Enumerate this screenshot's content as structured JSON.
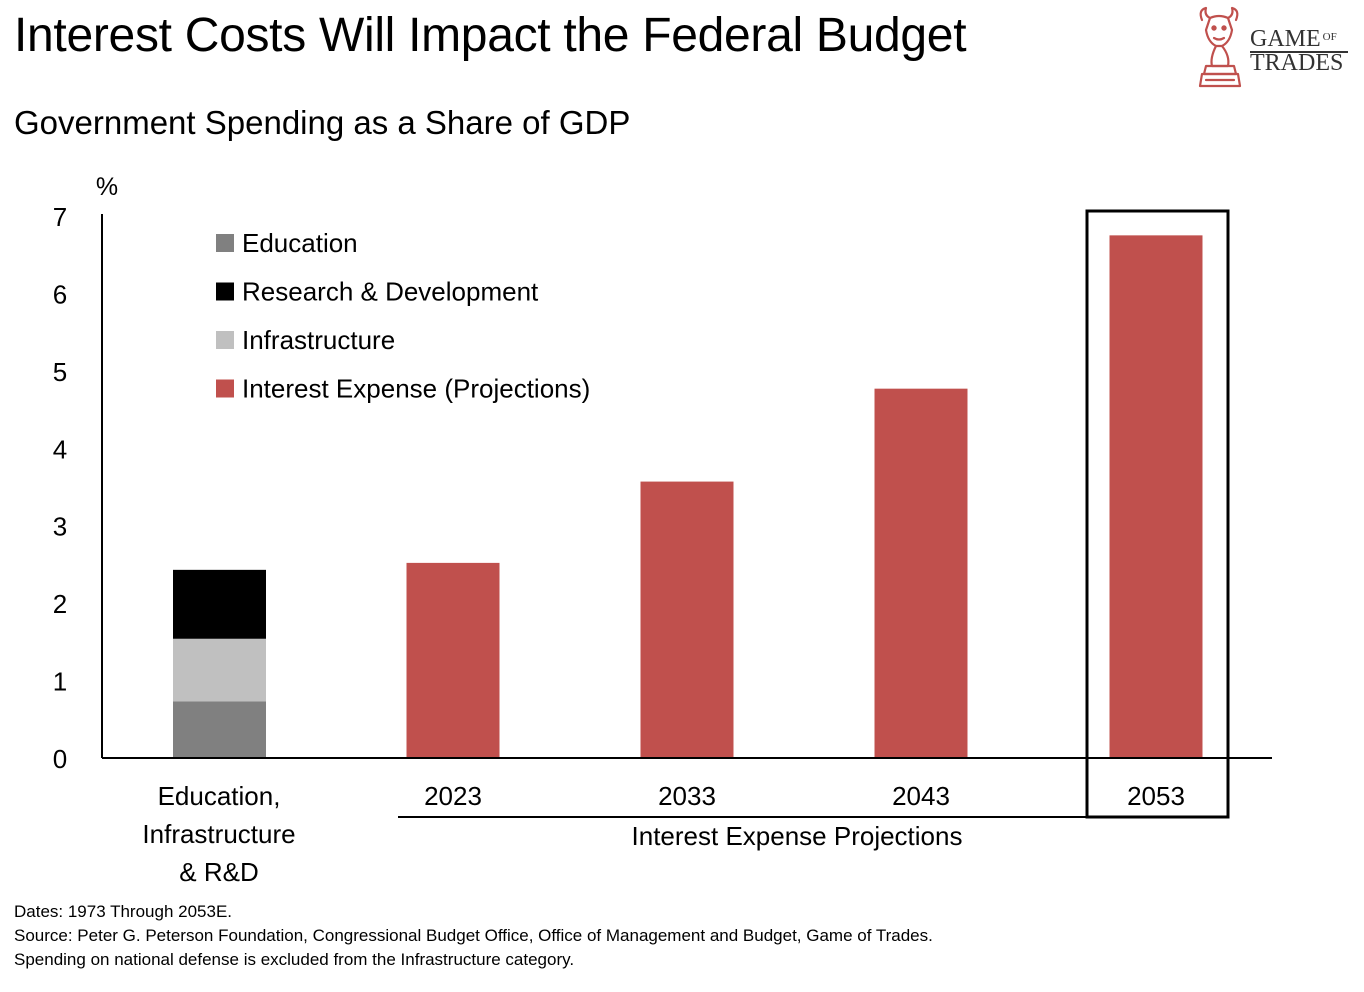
{
  "title": "Interest Costs Will Impact the Federal Budget",
  "subtitle": "Government Spending as a Share of GDP",
  "logo": {
    "line1": "GAME",
    "of": "OF",
    "line2": "TRADES"
  },
  "chart_data": {
    "type": "bar",
    "ylabel": "%",
    "ylim": [
      0,
      7
    ],
    "yticks": [
      0,
      1,
      2,
      3,
      4,
      5,
      6,
      7
    ],
    "legend": [
      {
        "name": "Education",
        "color": "#808080"
      },
      {
        "name": "Research & Development",
        "color": "#000000"
      },
      {
        "name": "Infrastructure",
        "color": "#c0c0c0"
      },
      {
        "name": "Interest Expense (Projections)",
        "color": "#c0504d"
      }
    ],
    "stacked_bar": {
      "label_lines": [
        "Education,",
        "Infrastructure",
        "& R&D"
      ],
      "segments": [
        {
          "name": "Education",
          "value": 0.73,
          "color": "#808080"
        },
        {
          "name": "Infrastructure",
          "value": 0.81,
          "color": "#c0c0c0"
        },
        {
          "name": "Research & Development",
          "value": 0.89,
          "color": "#000000"
        }
      ]
    },
    "series": [
      {
        "name": "Interest Expense (Projections)",
        "categories": [
          "2023",
          "2033",
          "2043",
          "2053"
        ],
        "values": [
          2.52,
          3.57,
          4.77,
          6.75
        ],
        "color": "#c0504d"
      }
    ],
    "group_label": "Interest Expense Projections",
    "highlighted_category": "2053"
  },
  "footnotes": [
    "Dates: 1973 Through 2053E.",
    "Source: Peter G. Peterson Foundation, Congressional Budget Office, Office of Management and Budget, Game of Trades.",
    "Spending on national defense is excluded from the Infrastructure category."
  ]
}
